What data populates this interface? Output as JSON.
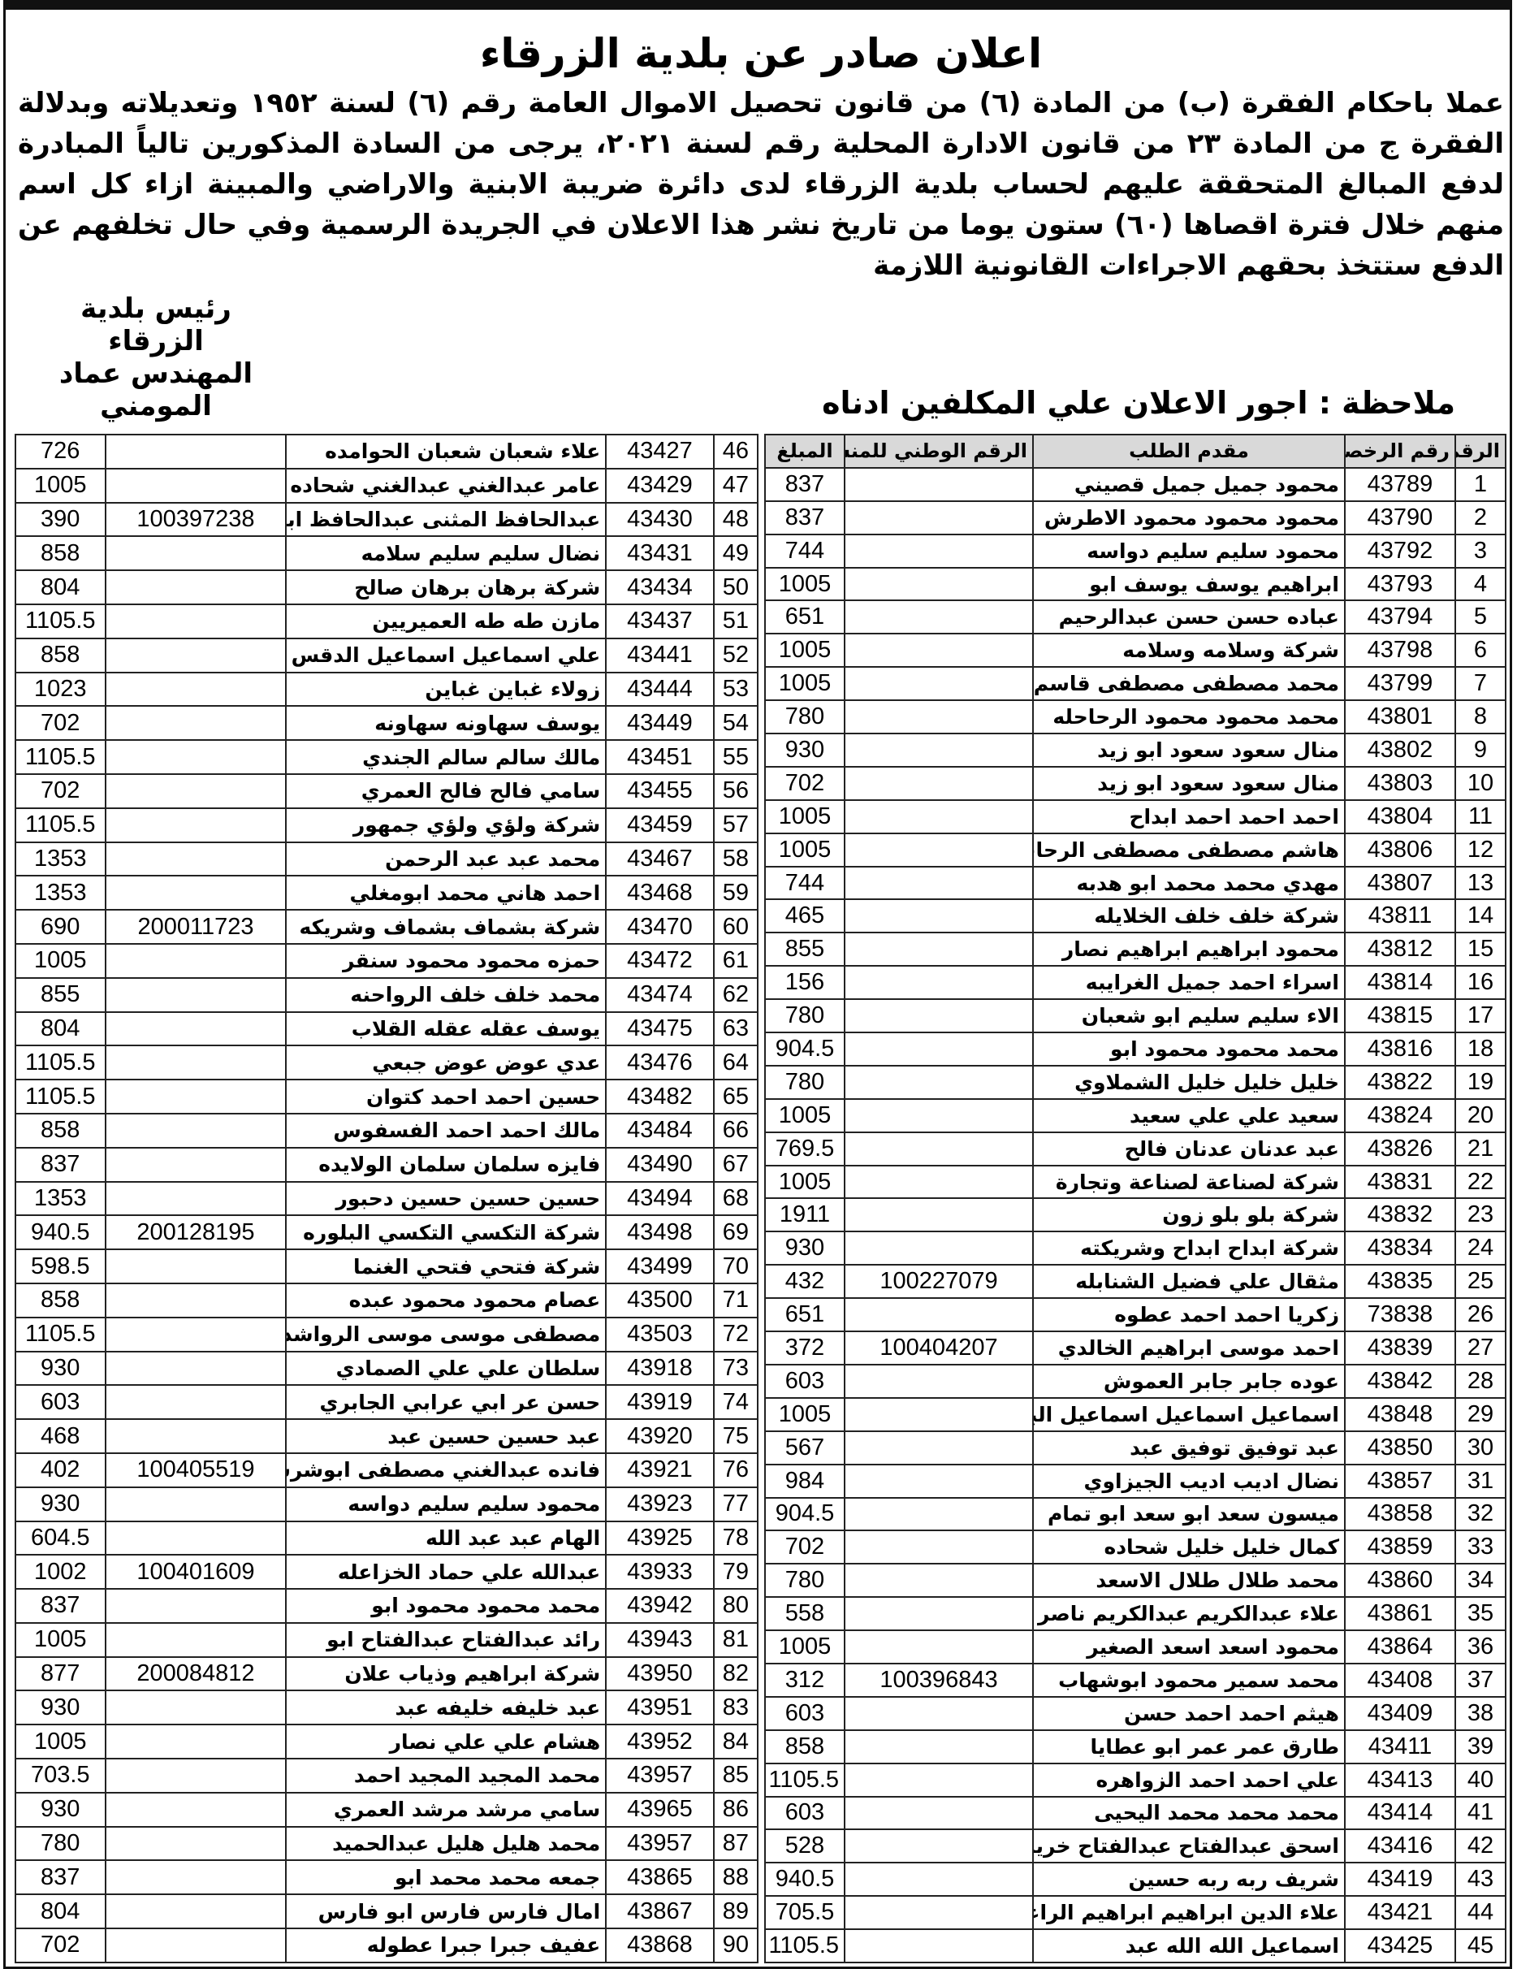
{
  "title": "اعلان صادر عن بلدية الزرقاء",
  "body": "عملا باحكام الفقرة (ب) من المادة (٦) من قانون تحصيل الاموال العامة رقم (٦) لسنة ١٩٥٢ وتعديلاته وبدلالة الفقرة ج من المادة ٢٣ من قانون الادارة المحلية رقم لسنة ٢٠٢١، يرجى من السادة المذكورين تالياً المبادرة لدفع المبالغ المتحققة عليهم لحساب بلدية الزرقاء لدى دائرة ضريبة الابنية والاراضي والمبينة ازاء كل اسم منهم خلال فترة اقصاها (٦٠) ستون يوما من تاريخ نشر هذا الاعلان في الجريدة الرسمية وفي حال تخلفهم عن الدفع ستتخذ بحقهم الاجراءات القانونية اللازمة",
  "signature": {
    "line1": "رئيس بلدية الزرقاء",
    "line2": "المهندس عماد المومني"
  },
  "note": "ملاحظة : اجور الاعلان علي المكلفين ادناه",
  "table_headers": {
    "num": "الرقم",
    "license": "رقم الرخصة",
    "name": "مقدم الطلب",
    "national": "الرقم الوطني للمنشاه",
    "amount": "المبلغ"
  },
  "rows_right": [
    [
      "1",
      "43789",
      "محمود جميل جميل قصيني",
      "",
      "837"
    ],
    [
      "2",
      "43790",
      "محمود محمود محمود الاطرش",
      "",
      "837"
    ],
    [
      "3",
      "43792",
      "محمود سليم سليم دواسه",
      "",
      "744"
    ],
    [
      "4",
      "43793",
      "ابراهيم يوسف يوسف ابو",
      "",
      "1005"
    ],
    [
      "5",
      "43794",
      "عباده حسن حسن عبدالرحيم",
      "",
      "651"
    ],
    [
      "6",
      "43798",
      "شركة وسلامه وسلامه",
      "",
      "1005"
    ],
    [
      "7",
      "43799",
      "محمد مصطفى مصطفى قاسم",
      "",
      "1005"
    ],
    [
      "8",
      "43801",
      "محمد محمود محمود الرحاحله",
      "",
      "780"
    ],
    [
      "9",
      "43802",
      "منال سعود سعود ابو زيد",
      "",
      "930"
    ],
    [
      "10",
      "43803",
      "منال سعود سعود ابو زيد",
      "",
      "702"
    ],
    [
      "11",
      "43804",
      "احمد احمد احمد ابداح",
      "",
      "1005"
    ],
    [
      "12",
      "43806",
      "هاشم مصطفى مصطفى الرحاحله",
      "",
      "1005"
    ],
    [
      "13",
      "43807",
      "مهدي محمد محمد ابو هدبه",
      "",
      "744"
    ],
    [
      "14",
      "43811",
      "شركة خلف خلف الخلايله",
      "",
      "465"
    ],
    [
      "15",
      "43812",
      "محمود ابراهيم ابراهيم نصار",
      "",
      "855"
    ],
    [
      "16",
      "43814",
      "اسراء احمد جميل الغرايبه",
      "",
      "156"
    ],
    [
      "17",
      "43815",
      "الاء سليم سليم ابو شعبان",
      "",
      "780"
    ],
    [
      "18",
      "43816",
      "محمد محمود محمود ابو",
      "",
      "904.5"
    ],
    [
      "19",
      "43822",
      "خليل خليل خليل الشملاوي",
      "",
      "780"
    ],
    [
      "20",
      "43824",
      "سعيد علي علي سعيد",
      "",
      "1005"
    ],
    [
      "21",
      "43826",
      "عبد عدنان عدنان فالح",
      "",
      "769.5"
    ],
    [
      "22",
      "43831",
      "شركة لصناعة لصناعة وتجارة",
      "",
      "1005"
    ],
    [
      "23",
      "43832",
      "شركة بلو بلو زون",
      "",
      "1911"
    ],
    [
      "24",
      "43834",
      "شركة ابداح ابداح وشريكته",
      "",
      "930"
    ],
    [
      "25",
      "43835",
      "مثقال علي فضيل الشنابله",
      "100227079",
      "432"
    ],
    [
      "26",
      "73838",
      "زكريا احمد احمد عطوه",
      "",
      "651"
    ],
    [
      "27",
      "43839",
      "احمد موسى ابراهيم الخالدي",
      "100404207",
      "372"
    ],
    [
      "28",
      "43842",
      "عوده جابر جابر العموش",
      "",
      "603"
    ],
    [
      "29",
      "43848",
      "اسماعيل اسماعيل اسماعيل البرغوثي",
      "",
      "1005"
    ],
    [
      "30",
      "43850",
      "عبد توفيق توفيق عبد",
      "",
      "567"
    ],
    [
      "31",
      "43857",
      "نضال اديب اديب الجيزاوي",
      "",
      "984"
    ],
    [
      "32",
      "43858",
      "ميسون سعد ابو سعد ابو تمام",
      "",
      "904.5"
    ],
    [
      "33",
      "43859",
      "كمال خليل خليل شحاده",
      "",
      "702"
    ],
    [
      "34",
      "43860",
      "محمد طلال طلال الاسعد",
      "",
      "780"
    ],
    [
      "35",
      "43861",
      "علاء عبدالكريم عبدالكريم ناصر",
      "",
      "558"
    ],
    [
      "36",
      "43864",
      "محمود اسعد اسعد الصغير",
      "",
      "1005"
    ],
    [
      "37",
      "43408",
      "محمد سمير محمود ابوشهاب",
      "100396843",
      "312"
    ],
    [
      "38",
      "43409",
      "هيثم احمد احمد حسن",
      "",
      "603"
    ],
    [
      "39",
      "43411",
      "طارق عمر عمر ابو عطايا",
      "",
      "858"
    ],
    [
      "40",
      "43413",
      "علي احمد احمد الزواهره",
      "",
      "1105.5"
    ],
    [
      "41",
      "43414",
      "محمد محمد محمد اليحيى",
      "",
      "603"
    ],
    [
      "42",
      "43416",
      "اسحق عبدالفتاح عبدالفتاح خريس",
      "",
      "528"
    ],
    [
      "43",
      "43419",
      "شريف ربه ربه حسين",
      "",
      "940.5"
    ],
    [
      "44",
      "43421",
      "علاء الدين ابراهيم ابراهيم الراعي",
      "",
      "705.5"
    ],
    [
      "45",
      "43425",
      "اسماعيل الله الله عبد",
      "",
      "1105.5"
    ]
  ],
  "rows_left": [
    [
      "46",
      "43427",
      "علاء شعبان شعبان الحوامده",
      "",
      "726"
    ],
    [
      "47",
      "43429",
      "عامر عبدالغني عبدالغني شحاده",
      "",
      "1005"
    ],
    [
      "48",
      "43430",
      "عبدالحافظ المثنى عبدالحافظ ابوعميره",
      "100397238",
      "390"
    ],
    [
      "49",
      "43431",
      "نضال سليم سليم سلامه",
      "",
      "858"
    ],
    [
      "50",
      "43434",
      "شركة برهان برهان صالح",
      "",
      "804"
    ],
    [
      "51",
      "43437",
      "مازن طه طه العميريين",
      "",
      "1105.5"
    ],
    [
      "52",
      "43441",
      "علي اسماعيل اسماعيل الدقس",
      "",
      "858"
    ],
    [
      "53",
      "43444",
      "زولاء غباين غباين",
      "",
      "1023"
    ],
    [
      "54",
      "43449",
      "يوسف سهاونه سهاونه",
      "",
      "702"
    ],
    [
      "55",
      "43451",
      "مالك سالم سالم الجندي",
      "",
      "1105.5"
    ],
    [
      "56",
      "43455",
      "سامي فالح فالح العمري",
      "",
      "702"
    ],
    [
      "57",
      "43459",
      "شركة ولؤي ولؤي جمهور",
      "",
      "1105.5"
    ],
    [
      "58",
      "43467",
      "محمد عبد عبد الرحمن",
      "",
      "1353"
    ],
    [
      "59",
      "43468",
      "احمد هاني محمد ابومغلي",
      "",
      "1353"
    ],
    [
      "60",
      "43470",
      "شركة بشماف بشماف وشريكه",
      "200011723",
      "690"
    ],
    [
      "61",
      "43472",
      "حمزه محمود محمود سنقر",
      "",
      "1005"
    ],
    [
      "62",
      "43474",
      "محمد خلف خلف الرواحنه",
      "",
      "855"
    ],
    [
      "63",
      "43475",
      "يوسف عقله عقله القلاب",
      "",
      "804"
    ],
    [
      "64",
      "43476",
      "عدي عوض عوض جبعي",
      "",
      "1105.5"
    ],
    [
      "65",
      "43482",
      "حسين احمد احمد كتوان",
      "",
      "1105.5"
    ],
    [
      "66",
      "43484",
      "مالك احمد احمد الفسفوس",
      "",
      "858"
    ],
    [
      "67",
      "43490",
      "فايزه سلمان سلمان الولايده",
      "",
      "837"
    ],
    [
      "68",
      "43494",
      "حسين حسين حسين دحبور",
      "",
      "1353"
    ],
    [
      "69",
      "43498",
      "شركة التكسي التكسي البلوره",
      "200128195",
      "940.5"
    ],
    [
      "70",
      "43499",
      "شركة فتحي فتحي الغنما",
      "",
      "598.5"
    ],
    [
      "71",
      "43500",
      "عصام محمود محمود عبده",
      "",
      "858"
    ],
    [
      "72",
      "43503",
      "مصطفى موسى موسى الرواشده",
      "",
      "1105.5"
    ],
    [
      "73",
      "43918",
      "سلطان علي علي الصمادي",
      "",
      "930"
    ],
    [
      "74",
      "43919",
      "حسن عر ابي عرابي الجابري",
      "",
      "603"
    ],
    [
      "75",
      "43920",
      "عبد حسين حسين عبد",
      "",
      "468"
    ],
    [
      "76",
      "43921",
      "فانده عبدالغني مصطفى ابوشرشوح",
      "100405519",
      "402"
    ],
    [
      "77",
      "43923",
      "محمود سليم سليم دواسه",
      "",
      "930"
    ],
    [
      "78",
      "43925",
      "الهام عبد عبد الله",
      "",
      "604.5"
    ],
    [
      "79",
      "43933",
      "عبدالله علي حماد الخزاعله",
      "100401609",
      "1002"
    ],
    [
      "80",
      "43942",
      "محمد محمود محمود ابو",
      "",
      "837"
    ],
    [
      "81",
      "43943",
      "رائد عبدالفتاح عبدالفتاح ابو",
      "",
      "1005"
    ],
    [
      "82",
      "43950",
      "شركة ابراهيم وذياب علان",
      "200084812",
      "877"
    ],
    [
      "83",
      "43951",
      "عبد خليفه خليفه عبد",
      "",
      "930"
    ],
    [
      "84",
      "43952",
      "هشام علي علي نصار",
      "",
      "1005"
    ],
    [
      "85",
      "43957",
      "محمد المجيد المجيد احمد",
      "",
      "703.5"
    ],
    [
      "86",
      "43965",
      "سامي مرشد مرشد العمري",
      "",
      "930"
    ],
    [
      "87",
      "43957",
      "محمد هليل هليل عبدالحميد",
      "",
      "780"
    ],
    [
      "88",
      "43865",
      "جمعه محمد محمد ابو",
      "",
      "837"
    ],
    [
      "89",
      "43867",
      "امال فارس فارس ابو فارس",
      "",
      "804"
    ],
    [
      "90",
      "43868",
      "عفيف جبرا جبرا عطوله",
      "",
      "702"
    ]
  ]
}
